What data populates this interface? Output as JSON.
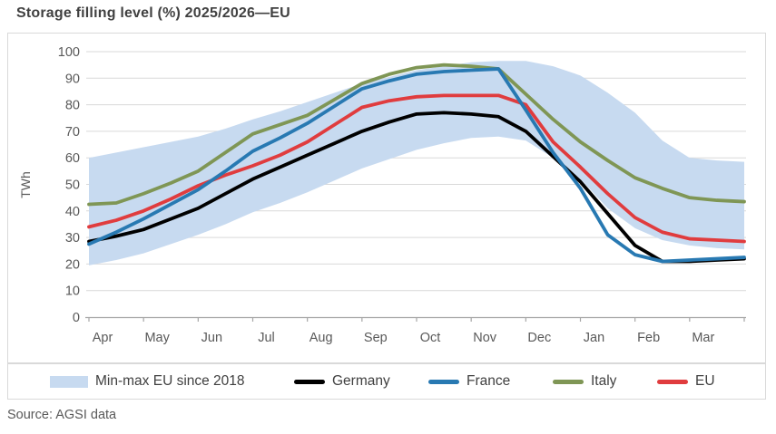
{
  "title": "Storage filling level (%) 2025/2026—EU",
  "source": "Source: AGSI data",
  "colors": {
    "band": "#c7daf0",
    "germany": "#000000",
    "france": "#2879b2",
    "italy": "#7f9655",
    "eu": "#e03c3e",
    "grid": "#d9d9d9",
    "axis_line": "#a6a6a6",
    "axis_text": "#595959",
    "title_text": "#404040",
    "box_border": "#d9d9d9"
  },
  "chart_data": {
    "type": "line",
    "title": "Storage filling level (%) 2025/2026—EU",
    "xlabel": "",
    "ylabel": "TWh",
    "ylim": [
      0,
      100
    ],
    "y_ticks": [
      0,
      10,
      20,
      30,
      40,
      50,
      60,
      70,
      80,
      90,
      100
    ],
    "x_ticklabels": [
      "Apr",
      "May",
      "Jun",
      "Jul",
      "Aug",
      "Sep",
      "Oct",
      "Nov",
      "Dec",
      "Jan",
      "Feb",
      "Mar"
    ],
    "x_note": "values sampled semi-monthly from Apr 1 to Mar 31 (25 points)",
    "grid": true,
    "legend_position": "bottom",
    "band": {
      "name": "Min-max EU since 2018",
      "color": "#c7daf0",
      "max": [
        60,
        62,
        64,
        66,
        68,
        71,
        74.5,
        77.5,
        81,
        84.5,
        88,
        90.5,
        93,
        94.5,
        96,
        96.5,
        96.5,
        94.5,
        91,
        84.5,
        77,
        66.5,
        60,
        59,
        58.5
      ],
      "min": [
        19.5,
        21.5,
        24,
        27.5,
        31,
        35,
        39.5,
        43,
        47,
        51.5,
        56,
        59.5,
        63,
        65.5,
        67.5,
        68,
        66.5,
        60,
        52,
        41,
        33.5,
        29,
        27,
        26,
        25.5
      ]
    },
    "series": [
      {
        "name": "Germany",
        "color": "#000000",
        "z": 3,
        "values": [
          28.5,
          30.5,
          33,
          37,
          41,
          46.5,
          52,
          56.5,
          61,
          65.5,
          70,
          73.5,
          76.5,
          77,
          76.5,
          75.5,
          70,
          60.5,
          51,
          39,
          27,
          21,
          21,
          21.5,
          22
        ]
      },
      {
        "name": "France",
        "color": "#2879b2",
        "z": 4,
        "values": [
          27.5,
          32,
          37,
          42.5,
          48,
          55,
          62.5,
          67.5,
          73,
          79.5,
          86,
          89,
          91.5,
          92.5,
          93,
          93.5,
          78,
          62,
          48.5,
          31,
          23.5,
          21,
          21.5,
          22,
          22.5
        ]
      },
      {
        "name": "Italy",
        "color": "#7f9655",
        "z": 1,
        "values": [
          42.5,
          43,
          46.5,
          50.5,
          55,
          62,
          69,
          72.5,
          76,
          82,
          88,
          91.5,
          94,
          95,
          94.5,
          93.5,
          84,
          74.5,
          66,
          59,
          52.5,
          48.5,
          45,
          44,
          43.5
        ]
      },
      {
        "name": "EU",
        "color": "#e03c3e",
        "z": 2,
        "values": [
          34,
          36.5,
          40,
          44.5,
          49.5,
          53.5,
          57,
          61,
          66,
          72.5,
          79,
          81.5,
          83,
          83.5,
          83.5,
          83.5,
          80,
          66,
          56.5,
          46.5,
          37.5,
          32,
          29.5,
          29,
          28.5
        ]
      }
    ]
  },
  "legend": {
    "band_label": "Min-max EU since 2018"
  }
}
